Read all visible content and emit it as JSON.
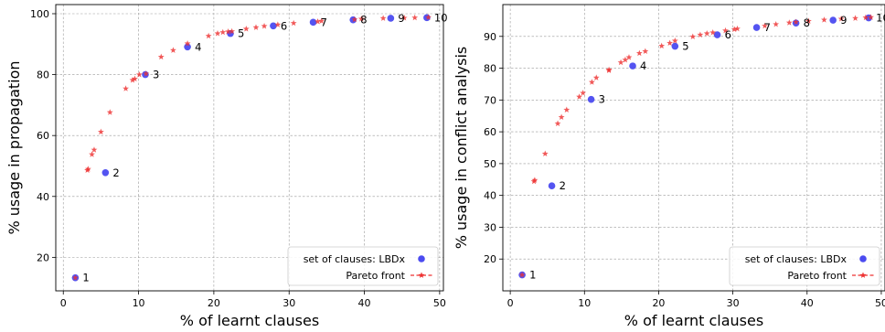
{
  "chart_data": [
    {
      "type": "scatter",
      "xlabel": "% of learnt clauses",
      "ylabel": "% usage in propagation",
      "xlim": [
        -1,
        50.5
      ],
      "ylim": [
        9,
        103
      ],
      "xticks": [
        "0",
        "10",
        "20",
        "30",
        "40",
        "50"
      ],
      "yticks": [
        "20",
        "40",
        "60",
        "80",
        "100"
      ],
      "grid": true,
      "legend_position": "lower-right",
      "legend": [
        "set of clauses: LBDx",
        "Pareto front"
      ],
      "series": [
        {
          "name": "set of clauses: LBDx",
          "marker": "circle",
          "color": "#4b4bf0",
          "points": [
            {
              "x": 1.6,
              "y": 13.3,
              "label": "1"
            },
            {
              "x": 5.6,
              "y": 47.8,
              "label": "2"
            },
            {
              "x": 10.9,
              "y": 80.0,
              "label": "3"
            },
            {
              "x": 16.5,
              "y": 89.1,
              "label": "4"
            },
            {
              "x": 22.2,
              "y": 93.5,
              "label": "5"
            },
            {
              "x": 27.9,
              "y": 96.0,
              "label": "6"
            },
            {
              "x": 33.2,
              "y": 97.2,
              "label": "7"
            },
            {
              "x": 38.5,
              "y": 98.0,
              "label": "8"
            },
            {
              "x": 43.5,
              "y": 98.5,
              "label": "9"
            },
            {
              "x": 48.3,
              "y": 98.7,
              "label": "10"
            }
          ]
        },
        {
          "name": "Pareto front",
          "marker": "star",
          "color": "#ee3030",
          "points": [
            {
              "x": 1.6,
              "y": 13.3
            },
            {
              "x": 3.2,
              "y": 48.6
            },
            {
              "x": 3.3,
              "y": 49.0
            },
            {
              "x": 3.8,
              "y": 53.8
            },
            {
              "x": 4.1,
              "y": 55.3
            },
            {
              "x": 5.0,
              "y": 61.2
            },
            {
              "x": 6.2,
              "y": 67.6
            },
            {
              "x": 8.3,
              "y": 75.4
            },
            {
              "x": 9.2,
              "y": 78.2
            },
            {
              "x": 9.5,
              "y": 78.6
            },
            {
              "x": 10.1,
              "y": 80.0
            },
            {
              "x": 11.0,
              "y": 80.3
            },
            {
              "x": 13.0,
              "y": 85.8
            },
            {
              "x": 14.6,
              "y": 88.0
            },
            {
              "x": 16.5,
              "y": 90.2
            },
            {
              "x": 19.3,
              "y": 92.7
            },
            {
              "x": 20.5,
              "y": 93.5
            },
            {
              "x": 21.2,
              "y": 93.9
            },
            {
              "x": 21.9,
              "y": 94.1
            },
            {
              "x": 22.4,
              "y": 94.2
            },
            {
              "x": 24.3,
              "y": 95.0
            },
            {
              "x": 25.6,
              "y": 95.5
            },
            {
              "x": 26.7,
              "y": 95.9
            },
            {
              "x": 28.5,
              "y": 96.4
            },
            {
              "x": 30.6,
              "y": 96.9
            },
            {
              "x": 33.8,
              "y": 97.4
            },
            {
              "x": 34.3,
              "y": 97.6
            },
            {
              "x": 38.7,
              "y": 98.1
            },
            {
              "x": 39.6,
              "y": 98.3
            },
            {
              "x": 42.5,
              "y": 98.5
            },
            {
              "x": 45.3,
              "y": 98.6
            },
            {
              "x": 46.7,
              "y": 98.7
            },
            {
              "x": 48.5,
              "y": 98.8
            }
          ]
        }
      ]
    },
    {
      "type": "scatter",
      "xlabel": "% of learnt clauses",
      "ylabel": "% usage in conflict analysis",
      "xlim": [
        -1,
        50.5
      ],
      "ylim": [
        10,
        100
      ],
      "xticks": [
        "0",
        "10",
        "20",
        "30",
        "40",
        "50"
      ],
      "yticks": [
        "20",
        "30",
        "40",
        "50",
        "60",
        "70",
        "80",
        "90"
      ],
      "grid": true,
      "legend_position": "lower-right",
      "legend": [
        "set of clauses: LBDx",
        "Pareto front"
      ],
      "series": [
        {
          "name": "set of clauses: LBDx",
          "marker": "circle",
          "color": "#4b4bf0",
          "points": [
            {
              "x": 1.6,
              "y": 15.0,
              "label": "1"
            },
            {
              "x": 5.6,
              "y": 43.0,
              "label": "2"
            },
            {
              "x": 10.9,
              "y": 70.2,
              "label": "3"
            },
            {
              "x": 16.5,
              "y": 80.7,
              "label": "4"
            },
            {
              "x": 22.2,
              "y": 86.9,
              "label": "5"
            },
            {
              "x": 27.9,
              "y": 90.5,
              "label": "6"
            },
            {
              "x": 33.2,
              "y": 92.8,
              "label": "7"
            },
            {
              "x": 38.5,
              "y": 94.2,
              "label": "8"
            },
            {
              "x": 43.5,
              "y": 95.1,
              "label": "9"
            },
            {
              "x": 48.3,
              "y": 95.8,
              "label": "10"
            }
          ]
        },
        {
          "name": "Pareto front",
          "marker": "star",
          "color": "#ee3030",
          "points": [
            {
              "x": 1.6,
              "y": 15.0
            },
            {
              "x": 3.2,
              "y": 44.4
            },
            {
              "x": 3.3,
              "y": 44.8
            },
            {
              "x": 4.7,
              "y": 53.1
            },
            {
              "x": 6.4,
              "y": 62.6
            },
            {
              "x": 6.9,
              "y": 64.6
            },
            {
              "x": 7.6,
              "y": 66.9
            },
            {
              "x": 9.3,
              "y": 71.0
            },
            {
              "x": 9.8,
              "y": 72.2
            },
            {
              "x": 11.0,
              "y": 75.6
            },
            {
              "x": 11.6,
              "y": 77.0
            },
            {
              "x": 13.3,
              "y": 79.3
            },
            {
              "x": 13.3,
              "y": 79.5
            },
            {
              "x": 14.9,
              "y": 81.8
            },
            {
              "x": 15.5,
              "y": 82.6
            },
            {
              "x": 16.0,
              "y": 83.4
            },
            {
              "x": 17.4,
              "y": 84.7
            },
            {
              "x": 18.2,
              "y": 85.3
            },
            {
              "x": 20.4,
              "y": 87.0
            },
            {
              "x": 21.5,
              "y": 87.9
            },
            {
              "x": 22.2,
              "y": 88.6
            },
            {
              "x": 24.6,
              "y": 89.9
            },
            {
              "x": 25.6,
              "y": 90.5
            },
            {
              "x": 26.5,
              "y": 90.9
            },
            {
              "x": 27.3,
              "y": 91.2
            },
            {
              "x": 29.0,
              "y": 91.8
            },
            {
              "x": 30.2,
              "y": 92.2
            },
            {
              "x": 30.6,
              "y": 92.4
            },
            {
              "x": 34.3,
              "y": 93.3
            },
            {
              "x": 35.8,
              "y": 93.8
            },
            {
              "x": 37.6,
              "y": 94.3
            },
            {
              "x": 38.5,
              "y": 94.5
            },
            {
              "x": 40.2,
              "y": 94.8
            },
            {
              "x": 42.3,
              "y": 95.2
            },
            {
              "x": 44.6,
              "y": 95.5
            },
            {
              "x": 46.5,
              "y": 95.7
            },
            {
              "x": 47.9,
              "y": 95.9
            },
            {
              "x": 48.6,
              "y": 96.0
            }
          ]
        }
      ]
    }
  ]
}
